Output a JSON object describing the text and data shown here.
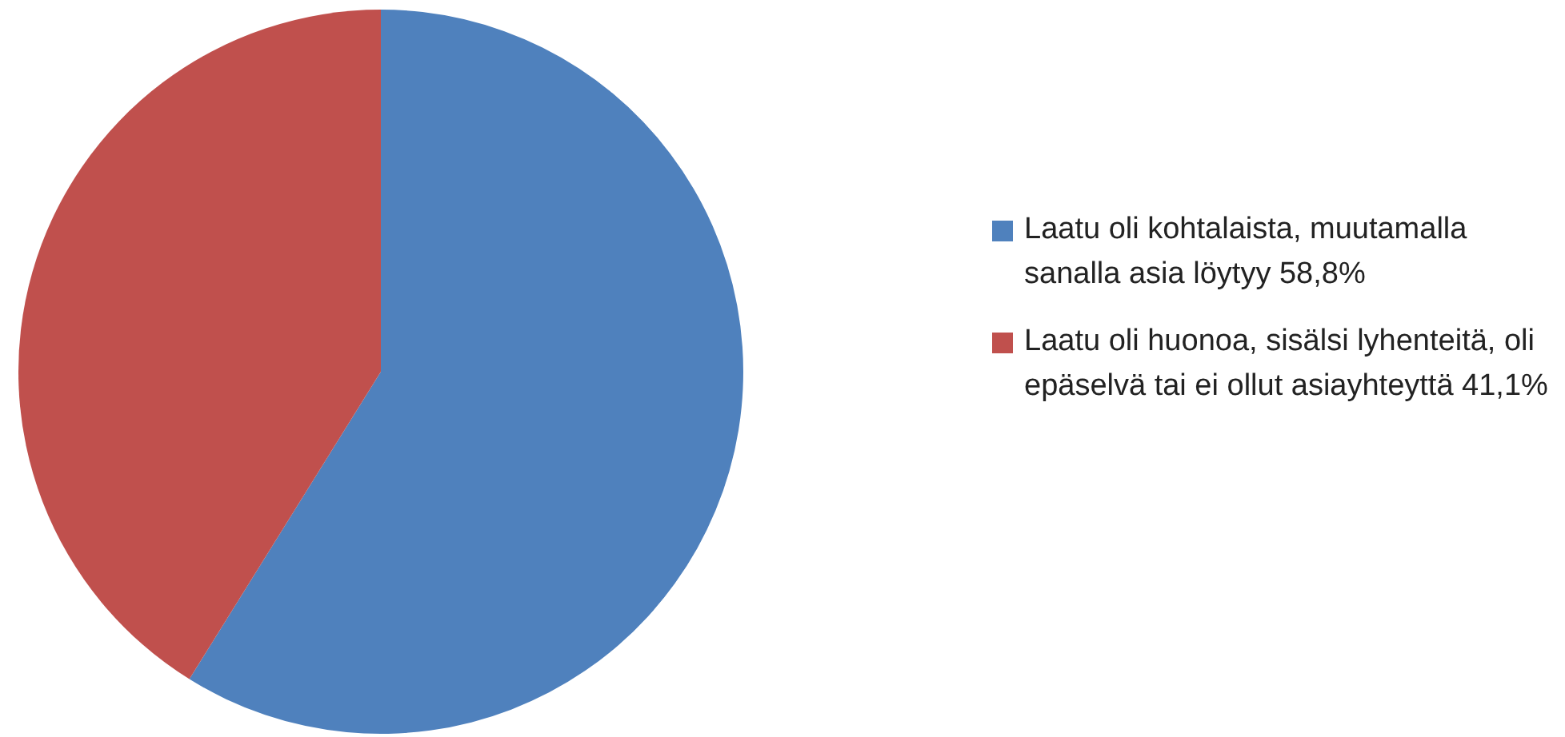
{
  "chart_data": {
    "type": "pie",
    "categories": [
      "Laatu oli kohtalaista, muutamalla sanalla asia löytyy 58,8%",
      "Laatu oli huonoa, sisälsi lyhenteitä, oli epäselvä tai ei ollut asiayhteyttä 41,1%"
    ],
    "values": [
      58.8,
      41.1
    ],
    "colors": [
      "#4f81bd",
      "#c0504d"
    ],
    "legend": "right"
  }
}
